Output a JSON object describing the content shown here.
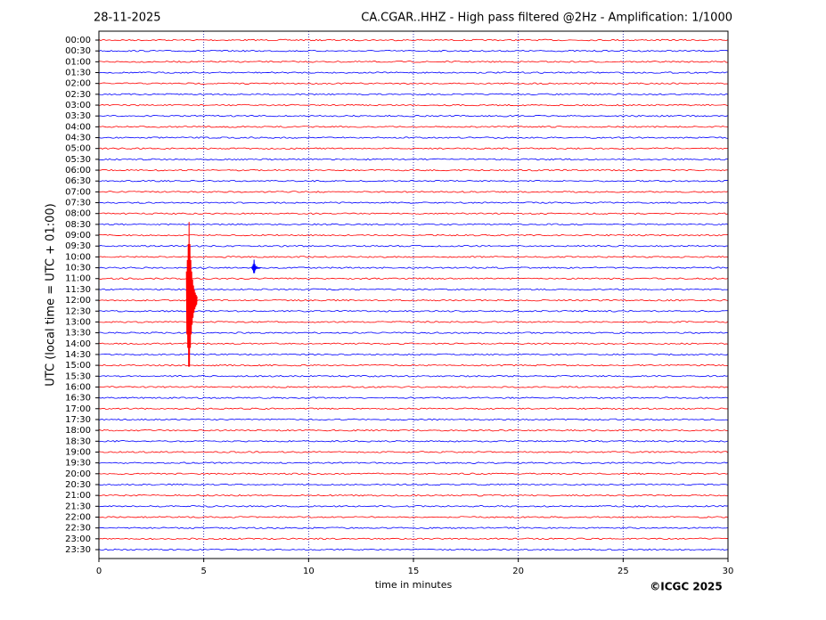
{
  "chart_data": {
    "type": "helicorder",
    "date": "28-11-2025",
    "title": "CA.CGAR..HHZ - High pass filtered @2Hz - Amplification: 1/1000",
    "y_label": "UTC (local time = UTC + 01:00)",
    "x_label": "time in minutes",
    "credit": "©ICGC 2025",
    "categories": [
      "00:00",
      "00:30",
      "01:00",
      "01:30",
      "02:00",
      "02:30",
      "03:00",
      "03:30",
      "04:00",
      "04:30",
      "05:00",
      "05:30",
      "06:00",
      "06:30",
      "07:00",
      "07:30",
      "08:00",
      "08:30",
      "09:00",
      "09:30",
      "10:00",
      "10:30",
      "11:00",
      "11:30",
      "12:00",
      "12:30",
      "13:00",
      "13:30",
      "14:00",
      "14:30",
      "15:00",
      "15:30",
      "16:00",
      "16:30",
      "17:00",
      "17:30",
      "18:00",
      "18:30",
      "19:00",
      "19:30",
      "20:00",
      "20:30",
      "21:00",
      "21:30",
      "22:00",
      "22:30",
      "23:00",
      "23:30"
    ],
    "colors": [
      "#ff0000",
      "#0000ff"
    ],
    "events": [
      {
        "x": 4.3,
        "row": 24
      },
      {
        "x": 7.4,
        "row": 21
      }
    ],
    "xlim": [
      0,
      30
    ],
    "xticks": [
      0,
      5,
      10,
      15,
      20,
      25,
      30
    ],
    "grid": true
  }
}
